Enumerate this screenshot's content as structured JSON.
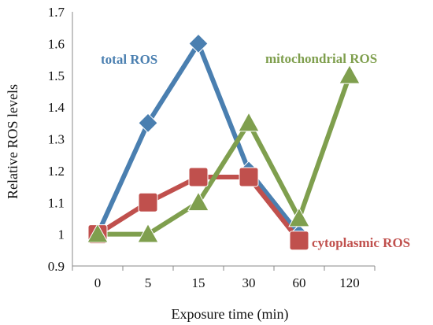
{
  "chart_data": {
    "type": "line",
    "categories": [
      "0",
      "5",
      "15",
      "30",
      "60",
      "120"
    ],
    "xlabel": "Exposure time (min)",
    "ylabel": "Relative ROS levels",
    "ylim": [
      0.9,
      1.7
    ],
    "yticks": [
      "0.9",
      "1",
      "1.1",
      "1.2",
      "1.3",
      "1.4",
      "1.5",
      "1.6",
      "1.7"
    ],
    "grid": "none",
    "legend": "inline labels",
    "series": [
      {
        "name": "total ROS",
        "values": [
          1.0,
          1.35,
          1.6,
          1.2,
          1.0,
          null
        ],
        "color": "#4a7fb0",
        "marker": "diamond"
      },
      {
        "name": "cytoplasmic ROS",
        "values": [
          1.0,
          1.1,
          1.18,
          1.18,
          0.98,
          null
        ],
        "color": "#c0504d",
        "marker": "square"
      },
      {
        "name": "mitochondrial ROS",
        "values": [
          1.0,
          1.0,
          1.1,
          1.35,
          1.05,
          1.5
        ],
        "color": "#7f9f4e",
        "marker": "triangle"
      }
    ]
  }
}
